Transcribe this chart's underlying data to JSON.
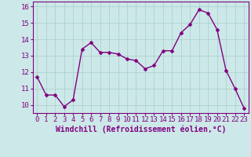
{
  "x": [
    0,
    1,
    2,
    3,
    4,
    5,
    6,
    7,
    8,
    9,
    10,
    11,
    12,
    13,
    14,
    15,
    16,
    17,
    18,
    19,
    20,
    21,
    22,
    23
  ],
  "y": [
    11.7,
    10.6,
    10.6,
    9.9,
    10.3,
    13.4,
    13.8,
    13.2,
    13.2,
    13.1,
    12.8,
    12.7,
    12.2,
    12.4,
    13.3,
    13.3,
    14.4,
    14.9,
    15.8,
    15.6,
    14.6,
    12.1,
    11.0,
    9.8
  ],
  "line_color": "#800080",
  "marker_color": "#800080",
  "bg_color": "#cce8e8",
  "grid_color": "#aacccc",
  "xlabel": "Windchill (Refroidissement éolien,°C)",
  "ylim": [
    9.5,
    16.3
  ],
  "xlim": [
    -0.5,
    23.5
  ],
  "yticks": [
    10,
    11,
    12,
    13,
    14,
    15,
    16
  ],
  "xticks": [
    0,
    1,
    2,
    3,
    4,
    5,
    6,
    7,
    8,
    9,
    10,
    11,
    12,
    13,
    14,
    15,
    16,
    17,
    18,
    19,
    20,
    21,
    22,
    23
  ],
  "xlabel_fontsize": 7.0,
  "tick_fontsize": 6.5,
  "line_width": 1.0,
  "marker_size": 2.5
}
